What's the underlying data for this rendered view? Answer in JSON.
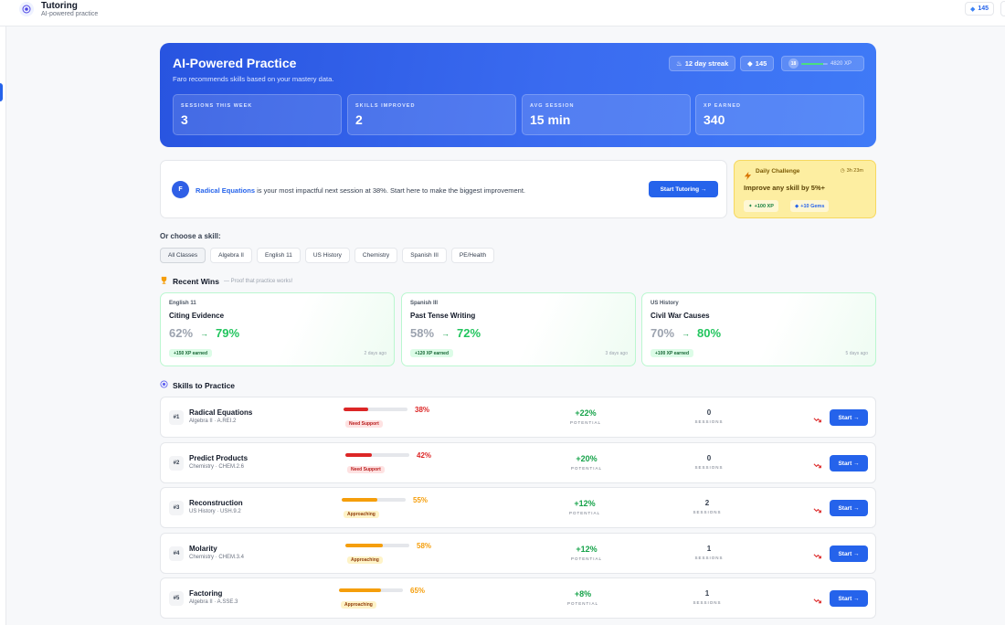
{
  "app": {
    "title": "Tutoring",
    "subtitle": "AI-powered practice",
    "gems": "145"
  },
  "hero": {
    "title": "AI-Powered Practice",
    "subtitle": "Faro recommends skills based on your mastery data.",
    "streak": "12 day streak",
    "gems": "145",
    "level": "18",
    "xp": "4820 XP",
    "xp_progress": 0.82,
    "stats": [
      {
        "label": "Sessions this week",
        "value": "3"
      },
      {
        "label": "Skills improved",
        "value": "2"
      },
      {
        "label": "Avg session",
        "value": "15 min"
      },
      {
        "label": "XP earned",
        "value": "340"
      }
    ]
  },
  "recommendation": {
    "avatar": "F",
    "skill": "Radical Equations",
    "text": "is your most impactful next session at 38%. Start here to make the biggest improvement.",
    "button": "Start Tutoring →"
  },
  "daily_challenge": {
    "title": "Daily Challenge",
    "time_left": "3h 23m",
    "goal": "Improve any skill by 5%+",
    "rewards": [
      "+100 XP",
      "+10 Gems"
    ]
  },
  "filters": {
    "heading": "Or choose a skill:",
    "items": [
      "All Classes",
      "Algebra II",
      "English 11",
      "US History",
      "Chemistry",
      "Spanish III",
      "PE/Health"
    ],
    "active": "All Classes"
  },
  "recent_wins": {
    "heading": "Recent Wins",
    "note": "— Proof that practice works!",
    "items": [
      {
        "subject": "English 11",
        "skill": "Citing Evidence",
        "from": "62%",
        "to": "79%",
        "xp": "+150 XP earned",
        "date": "2 days ago"
      },
      {
        "subject": "Spanish III",
        "skill": "Past Tense Writing",
        "from": "58%",
        "to": "72%",
        "xp": "+120 XP earned",
        "date": "3 days ago"
      },
      {
        "subject": "US History",
        "skill": "Civil War Causes",
        "from": "70%",
        "to": "80%",
        "xp": "+100 XP earned",
        "date": "5 days ago"
      }
    ]
  },
  "skills": {
    "heading": "Skills to Practice",
    "potential_label": "POTENTIAL",
    "sessions_label": "SESSIONS",
    "start_label": "Start →",
    "colors": {
      "need": "#dc2626",
      "approach": "#f59e0b"
    },
    "items": [
      {
        "rank": "#1",
        "name": "Radical Equations",
        "code": "Algebra II · A.REI.2",
        "mastery": "38%",
        "mastery_value": 38,
        "status": "Need Support",
        "status_type": "need",
        "potential": "+22%",
        "sessions": "0"
      },
      {
        "rank": "#2",
        "name": "Predict Products",
        "code": "Chemistry · CHEM.2.6",
        "mastery": "42%",
        "mastery_value": 42,
        "status": "Need Support",
        "status_type": "need",
        "potential": "+20%",
        "sessions": "0"
      },
      {
        "rank": "#3",
        "name": "Reconstruction",
        "code": "US History · USH.9.2",
        "mastery": "55%",
        "mastery_value": 55,
        "status": "Approaching",
        "status_type": "approach",
        "potential": "+12%",
        "sessions": "2"
      },
      {
        "rank": "#4",
        "name": "Molarity",
        "code": "Chemistry · CHEM.3.4",
        "mastery": "58%",
        "mastery_value": 58,
        "status": "Approaching",
        "status_type": "approach",
        "potential": "+12%",
        "sessions": "1"
      },
      {
        "rank": "#5",
        "name": "Factoring",
        "code": "Algebra II · A.SSE.3",
        "mastery": "65%",
        "mastery_value": 65,
        "status": "Approaching",
        "status_type": "approach",
        "potential": "+8%",
        "sessions": "1"
      }
    ]
  }
}
